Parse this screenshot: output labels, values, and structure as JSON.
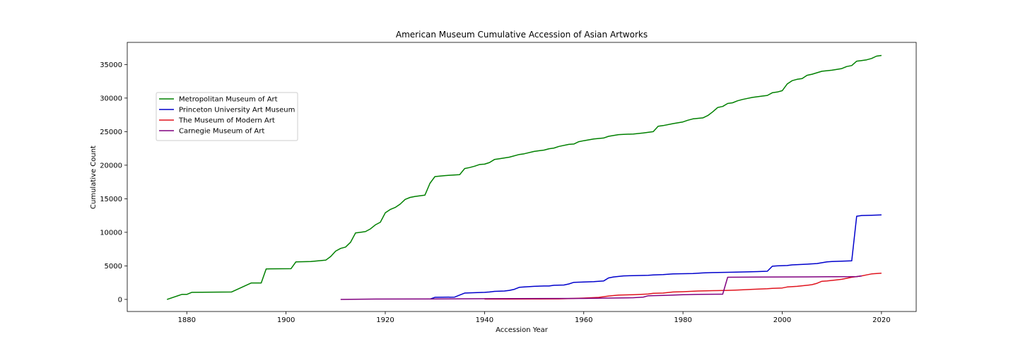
{
  "chart_data": {
    "type": "line",
    "title": "American Museum Cumulative Accession of Asian Artworks",
    "xlabel": "Accession Year",
    "ylabel": "Cumulative Count",
    "xlim": [
      1868,
      2027
    ],
    "ylim": [
      -1800,
      38300
    ],
    "xticks": [
      1880,
      1900,
      1920,
      1940,
      1960,
      1980,
      2000,
      2020
    ],
    "yticks": [
      0,
      5000,
      10000,
      15000,
      20000,
      25000,
      30000,
      35000
    ],
    "grid": false,
    "legend_position": "upper-left",
    "series": [
      {
        "name": "Metropolitan Museum of Art",
        "color": "#008000",
        "points": [
          [
            1876,
            0
          ],
          [
            1879,
            750
          ],
          [
            1880,
            750
          ],
          [
            1881,
            1050
          ],
          [
            1885,
            1080
          ],
          [
            1889,
            1100
          ],
          [
            1893,
            2450
          ],
          [
            1895,
            2450
          ],
          [
            1896,
            4550
          ],
          [
            1901,
            4580
          ],
          [
            1902,
            5600
          ],
          [
            1905,
            5650
          ],
          [
            1908,
            5850
          ],
          [
            1909,
            6400
          ],
          [
            1910,
            7200
          ],
          [
            1911,
            7600
          ],
          [
            1912,
            7800
          ],
          [
            1913,
            8500
          ],
          [
            1914,
            9900
          ],
          [
            1916,
            10100
          ],
          [
            1917,
            10500
          ],
          [
            1918,
            11100
          ],
          [
            1919,
            11500
          ],
          [
            1920,
            12900
          ],
          [
            1921,
            13400
          ],
          [
            1922,
            13700
          ],
          [
            1923,
            14200
          ],
          [
            1924,
            14900
          ],
          [
            1925,
            15200
          ],
          [
            1926,
            15350
          ],
          [
            1928,
            15550
          ],
          [
            1929,
            17300
          ],
          [
            1930,
            18300
          ],
          [
            1932,
            18450
          ],
          [
            1933,
            18500
          ],
          [
            1935,
            18600
          ],
          [
            1936,
            19500
          ],
          [
            1937,
            19650
          ],
          [
            1938,
            19850
          ],
          [
            1939,
            20100
          ],
          [
            1940,
            20150
          ],
          [
            1941,
            20400
          ],
          [
            1942,
            20850
          ],
          [
            1943,
            20950
          ],
          [
            1945,
            21200
          ],
          [
            1947,
            21600
          ],
          [
            1948,
            21700
          ],
          [
            1950,
            22050
          ],
          [
            1951,
            22150
          ],
          [
            1952,
            22250
          ],
          [
            1953,
            22450
          ],
          [
            1954,
            22550
          ],
          [
            1955,
            22800
          ],
          [
            1957,
            23100
          ],
          [
            1958,
            23150
          ],
          [
            1959,
            23500
          ],
          [
            1960,
            23650
          ],
          [
            1962,
            23900
          ],
          [
            1964,
            24050
          ],
          [
            1965,
            24300
          ],
          [
            1967,
            24550
          ],
          [
            1968,
            24600
          ],
          [
            1970,
            24650
          ],
          [
            1972,
            24800
          ],
          [
            1974,
            25000
          ],
          [
            1975,
            25800
          ],
          [
            1976,
            25900
          ],
          [
            1978,
            26200
          ],
          [
            1980,
            26450
          ],
          [
            1981,
            26700
          ],
          [
            1982,
            26900
          ],
          [
            1984,
            27050
          ],
          [
            1985,
            27400
          ],
          [
            1986,
            27950
          ],
          [
            1987,
            28600
          ],
          [
            1988,
            28750
          ],
          [
            1989,
            29200
          ],
          [
            1990,
            29300
          ],
          [
            1991,
            29600
          ],
          [
            1992,
            29800
          ],
          [
            1993,
            29950
          ],
          [
            1994,
            30100
          ],
          [
            1996,
            30300
          ],
          [
            1997,
            30400
          ],
          [
            1998,
            30800
          ],
          [
            1999,
            30900
          ],
          [
            2000,
            31100
          ],
          [
            2001,
            32100
          ],
          [
            2002,
            32600
          ],
          [
            2003,
            32800
          ],
          [
            2004,
            32900
          ],
          [
            2005,
            33400
          ],
          [
            2006,
            33550
          ],
          [
            2008,
            34000
          ],
          [
            2010,
            34150
          ],
          [
            2012,
            34400
          ],
          [
            2013,
            34700
          ],
          [
            2014,
            34850
          ],
          [
            2015,
            35500
          ],
          [
            2016,
            35600
          ],
          [
            2017,
            35700
          ],
          [
            2018,
            35900
          ],
          [
            2019,
            36250
          ],
          [
            2020,
            36350
          ]
        ]
      },
      {
        "name": "Princeton University Art Museum",
        "color": "#0000cc",
        "points": [
          [
            1929,
            50
          ],
          [
            1930,
            320
          ],
          [
            1934,
            350
          ],
          [
            1935,
            650
          ],
          [
            1936,
            950
          ],
          [
            1938,
            1000
          ],
          [
            1940,
            1050
          ],
          [
            1941,
            1100
          ],
          [
            1942,
            1200
          ],
          [
            1944,
            1250
          ],
          [
            1945,
            1350
          ],
          [
            1946,
            1500
          ],
          [
            1947,
            1800
          ],
          [
            1948,
            1850
          ],
          [
            1950,
            1950
          ],
          [
            1952,
            2000
          ],
          [
            1953,
            2000
          ],
          [
            1954,
            2100
          ],
          [
            1956,
            2150
          ],
          [
            1957,
            2300
          ],
          [
            1958,
            2550
          ],
          [
            1960,
            2600
          ],
          [
            1962,
            2650
          ],
          [
            1964,
            2750
          ],
          [
            1965,
            3200
          ],
          [
            1966,
            3350
          ],
          [
            1968,
            3500
          ],
          [
            1970,
            3550
          ],
          [
            1973,
            3600
          ],
          [
            1974,
            3650
          ],
          [
            1976,
            3700
          ],
          [
            1978,
            3800
          ],
          [
            1982,
            3850
          ],
          [
            1984,
            3950
          ],
          [
            1986,
            4000
          ],
          [
            1990,
            4050
          ],
          [
            1993,
            4100
          ],
          [
            1995,
            4150
          ],
          [
            1997,
            4200
          ],
          [
            1998,
            4950
          ],
          [
            1999,
            5000
          ],
          [
            2001,
            5050
          ],
          [
            2002,
            5150
          ],
          [
            2005,
            5250
          ],
          [
            2007,
            5350
          ],
          [
            2009,
            5600
          ],
          [
            2010,
            5650
          ],
          [
            2012,
            5700
          ],
          [
            2014,
            5750
          ],
          [
            2015,
            12400
          ],
          [
            2016,
            12500
          ],
          [
            2018,
            12550
          ],
          [
            2020,
            12600
          ]
        ]
      },
      {
        "name": "The Museum of Modern Art",
        "color": "#e0141e",
        "points": [
          [
            1940,
            50
          ],
          [
            1945,
            50
          ],
          [
            1950,
            60
          ],
          [
            1955,
            80
          ],
          [
            1958,
            150
          ],
          [
            1960,
            200
          ],
          [
            1963,
            300
          ],
          [
            1965,
            500
          ],
          [
            1967,
            650
          ],
          [
            1970,
            700
          ],
          [
            1973,
            800
          ],
          [
            1974,
            900
          ],
          [
            1976,
            950
          ],
          [
            1978,
            1100
          ],
          [
            1980,
            1150
          ],
          [
            1983,
            1250
          ],
          [
            1986,
            1300
          ],
          [
            1989,
            1350
          ],
          [
            1991,
            1400
          ],
          [
            1994,
            1500
          ],
          [
            1997,
            1600
          ],
          [
            1998,
            1650
          ],
          [
            2000,
            1700
          ],
          [
            2001,
            1850
          ],
          [
            2003,
            1950
          ],
          [
            2005,
            2100
          ],
          [
            2006,
            2200
          ],
          [
            2007,
            2400
          ],
          [
            2008,
            2700
          ],
          [
            2009,
            2750
          ],
          [
            2011,
            2900
          ],
          [
            2012,
            3000
          ],
          [
            2013,
            3150
          ],
          [
            2014,
            3300
          ],
          [
            2016,
            3500
          ],
          [
            2017,
            3650
          ],
          [
            2018,
            3800
          ],
          [
            2019,
            3850
          ],
          [
            2020,
            3900
          ]
        ]
      },
      {
        "name": "Carnegie Museum of Art",
        "color": "#800080",
        "points": [
          [
            1911,
            0
          ],
          [
            1918,
            50
          ],
          [
            1930,
            60
          ],
          [
            1940,
            100
          ],
          [
            1960,
            150
          ],
          [
            1965,
            200
          ],
          [
            1970,
            250
          ],
          [
            1972,
            350
          ],
          [
            1973,
            550
          ],
          [
            1976,
            600
          ],
          [
            1980,
            700
          ],
          [
            1983,
            750
          ],
          [
            1988,
            780
          ],
          [
            1989,
            3300
          ],
          [
            1995,
            3330
          ],
          [
            2000,
            3350
          ],
          [
            2010,
            3380
          ],
          [
            2015,
            3400
          ],
          [
            2016,
            3500
          ]
        ]
      }
    ]
  }
}
